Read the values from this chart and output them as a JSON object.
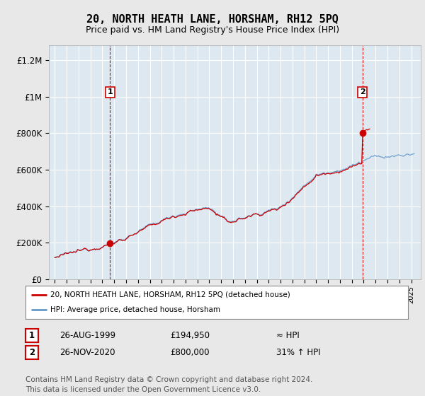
{
  "title": "20, NORTH HEATH LANE, HORSHAM, RH12 5PQ",
  "subtitle": "Price paid vs. HM Land Registry's House Price Index (HPI)",
  "title_fontsize": 11,
  "subtitle_fontsize": 9,
  "ylabel_ticks": [
    "£0",
    "£200K",
    "£400K",
    "£600K",
    "£800K",
    "£1M",
    "£1.2M"
  ],
  "ytick_values": [
    0,
    200000,
    400000,
    600000,
    800000,
    1000000,
    1200000
  ],
  "ylim": [
    0,
    1280000
  ],
  "xlim_start": 1994.5,
  "xlim_end": 2025.8,
  "background_color": "#e8e8e8",
  "plot_bg_color": "#dde8f0",
  "grid_color": "#ffffff",
  "sale1_x": 1999.646,
  "sale1_y": 194950,
  "sale2_x": 2020.9,
  "sale2_y": 800000,
  "sale_color": "#cc0000",
  "hpi_color": "#6699cc",
  "vline_color": "#cc0000",
  "legend_label_red": "20, NORTH HEATH LANE, HORSHAM, RH12 5PQ (detached house)",
  "legend_label_blue": "HPI: Average price, detached house, Horsham",
  "annotation1_label": "1",
  "annotation2_label": "2",
  "table_rows": [
    [
      "1",
      "26-AUG-1999",
      "£194,950",
      "≈ HPI"
    ],
    [
      "2",
      "26-NOV-2020",
      "£800,000",
      "31% ↑ HPI"
    ]
  ],
  "footer": "Contains HM Land Registry data © Crown copyright and database right 2024.\nThis data is licensed under the Open Government Licence v3.0.",
  "footer_fontsize": 7.5
}
